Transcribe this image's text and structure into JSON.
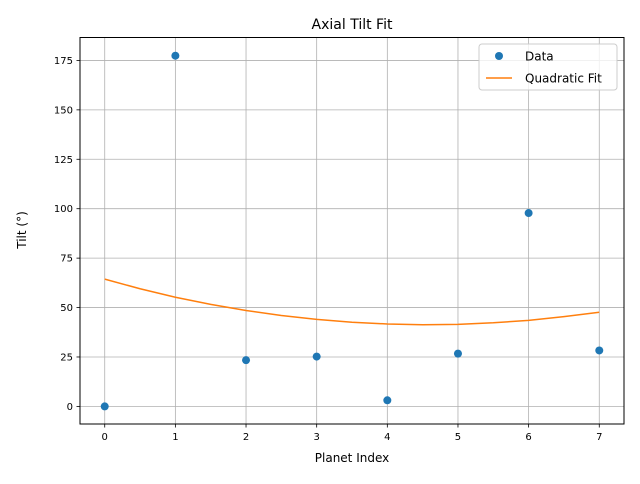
{
  "chart_data": {
    "type": "scatter",
    "title": "Axial Tilt Fit",
    "xlabel": "Planet Index",
    "ylabel": "Tilt (°)",
    "xlim": [
      -0.35,
      7.35
    ],
    "ylim": [
      -8.9,
      186.6
    ],
    "x_ticks": [
      0,
      1,
      2,
      3,
      4,
      5,
      6,
      7
    ],
    "y_ticks": [
      0,
      25,
      50,
      75,
      100,
      125,
      150,
      175
    ],
    "x_tick_labels": [
      "0",
      "1",
      "2",
      "3",
      "4",
      "5",
      "6",
      "7"
    ],
    "y_tick_labels": [
      "0",
      "25",
      "50",
      "75",
      "100",
      "125",
      "150",
      "175"
    ],
    "grid": true,
    "legend_position": "top-right",
    "series": [
      {
        "name": "Data",
        "kind": "scatter",
        "color": "#1f77b4",
        "x": [
          0,
          1,
          2,
          3,
          4,
          5,
          6,
          7
        ],
        "y": [
          0.0,
          177.4,
          23.4,
          25.2,
          3.1,
          26.7,
          97.8,
          28.3
        ]
      },
      {
        "name": "Quadratic Fit",
        "kind": "line",
        "color": "#ff7f0e",
        "x": [
          0,
          0.5,
          1,
          1.5,
          2,
          2.5,
          3,
          3.5,
          4,
          4.5,
          5,
          5.5,
          6,
          6.5,
          7
        ],
        "y": [
          64.4,
          59.5,
          55.2,
          51.6,
          48.5,
          46.0,
          44.0,
          42.6,
          41.7,
          41.3,
          41.5,
          42.3,
          43.5,
          45.4,
          47.6
        ]
      }
    ]
  }
}
